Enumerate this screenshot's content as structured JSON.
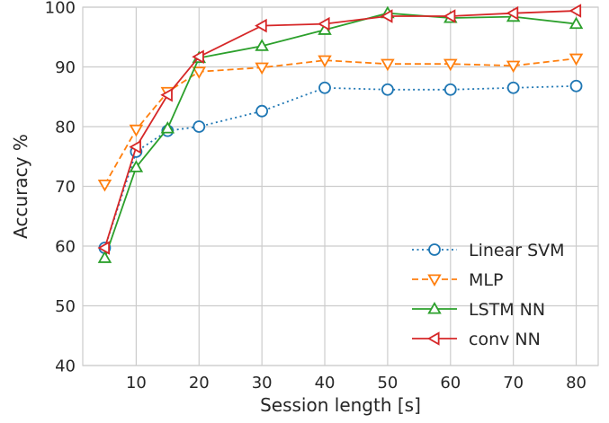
{
  "chart_data": {
    "type": "line",
    "xlabel": "Session length [s]",
    "ylabel": "Accuracy %",
    "ylim": [
      40,
      100
    ],
    "yticks": [
      40,
      50,
      60,
      70,
      80,
      90,
      100
    ],
    "x": [
      5,
      10,
      15,
      20,
      30,
      40,
      50,
      60,
      70,
      80
    ],
    "xticks": [
      10,
      20,
      30,
      40,
      50,
      60,
      70,
      80
    ],
    "grid": true,
    "legend_position": "bottom-right",
    "series": [
      {
        "name": "Linear SVM",
        "color": "#1f77b4",
        "line_style": "dotted",
        "marker": "circle",
        "values": [
          59.7,
          75.8,
          79.3,
          80.0,
          82.6,
          86.5,
          86.2,
          86.2,
          86.5,
          86.8
        ]
      },
      {
        "name": "MLP",
        "color": "#ff7f0e",
        "line_style": "dashed",
        "marker": "triangle-down",
        "values": [
          70.3,
          79.5,
          85.8,
          89.2,
          89.9,
          91.1,
          90.5,
          90.5,
          90.2,
          91.4
        ]
      },
      {
        "name": "LSTM NN",
        "color": "#2ca02c",
        "line_style": "solid",
        "marker": "triangle-up",
        "values": [
          58.0,
          73.2,
          79.7,
          91.5,
          93.5,
          96.2,
          99.0,
          98.2,
          98.4,
          97.2
        ]
      },
      {
        "name": "conv NN",
        "color": "#d62728",
        "line_style": "solid",
        "marker": "triangle-left",
        "values": [
          59.7,
          76.6,
          85.3,
          91.7,
          96.9,
          97.2,
          98.5,
          98.5,
          99.0,
          99.4
        ]
      }
    ]
  }
}
